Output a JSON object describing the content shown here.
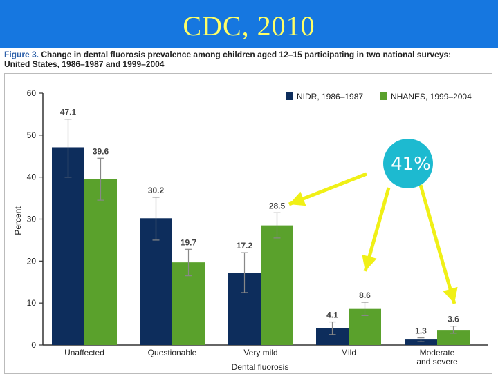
{
  "slide": {
    "title": "CDC, 2010"
  },
  "caption": {
    "label": "Figure 3.",
    "text_line1": "Change in dental fluorosis prevalence among children aged 12–15 participating in two national surveys:",
    "text_line2": "United States, 1986–1987 and 1999–2004"
  },
  "callout": {
    "text": "41%",
    "color": "#1dbad0"
  },
  "chart_data": {
    "type": "bar",
    "categories": [
      "Unaffected",
      "Questionable",
      "Very mild",
      "Mild",
      "Moderate and severe"
    ],
    "category_lines": [
      [
        "Unaffected"
      ],
      [
        "Questionable"
      ],
      [
        "Very mild"
      ],
      [
        "Mild"
      ],
      [
        "Moderate",
        "and severe"
      ]
    ],
    "series": [
      {
        "name": "NIDR, 1986–1987",
        "color": "#0d2d5c",
        "values": [
          47.1,
          30.2,
          17.2,
          4.1,
          1.3
        ],
        "labels": [
          "47.1",
          "30.2",
          "17.2",
          "4.1",
          "1.3"
        ],
        "err_low": [
          40.0,
          25.0,
          12.5,
          2.5,
          0.8
        ],
        "err_high": [
          53.8,
          35.2,
          22.0,
          5.5,
          1.7
        ]
      },
      {
        "name": "NHANES, 1999–2004",
        "color": "#5aa12c",
        "values": [
          39.6,
          19.7,
          28.5,
          8.6,
          3.6
        ],
        "labels": [
          "39.6",
          "19.7",
          "28.5",
          "8.6",
          "3.6"
        ],
        "err_low": [
          34.5,
          16.5,
          25.5,
          7.0,
          2.8
        ],
        "err_high": [
          44.5,
          22.8,
          31.5,
          10.2,
          4.5
        ]
      }
    ],
    "ylim": [
      0,
      60
    ],
    "yticks": [
      0,
      10,
      20,
      30,
      40,
      50,
      60
    ],
    "ylabel": "Percent",
    "xlabel": "Dental fluorosis",
    "legend_position": "top-right",
    "grid": false
  }
}
